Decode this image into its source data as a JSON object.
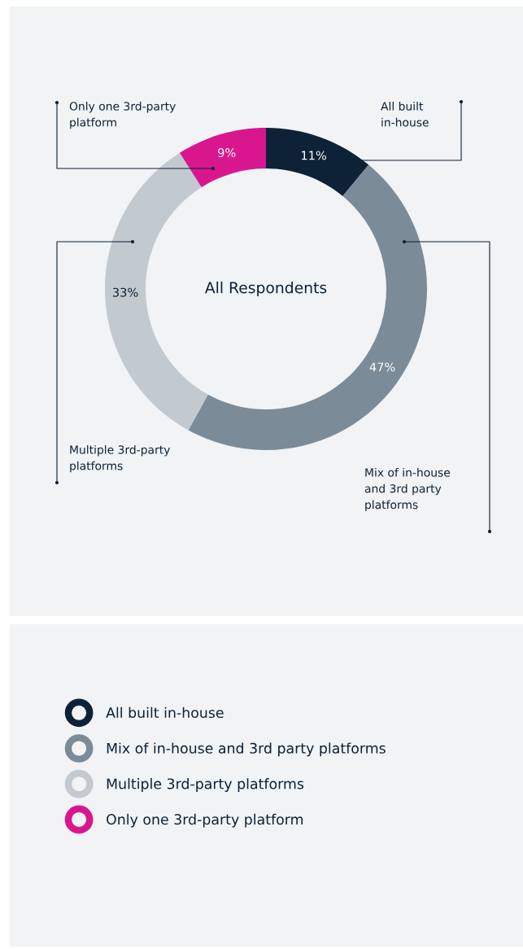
{
  "chart_data": {
    "type": "donut",
    "title": "All Respondents",
    "categories": [
      "All built in-house",
      "Mix of in-house and 3rd party platforms",
      "Multiple 3rd-party platforms",
      "Only one 3rd-party platform"
    ],
    "values": [
      11,
      47,
      33,
      9
    ],
    "colors": [
      "#0d2236",
      "#7b8b97",
      "#c2c9cf",
      "#d8178f"
    ],
    "value_labels": [
      "11%",
      "47%",
      "33%",
      "9%"
    ],
    "legend": "bottom"
  }
}
